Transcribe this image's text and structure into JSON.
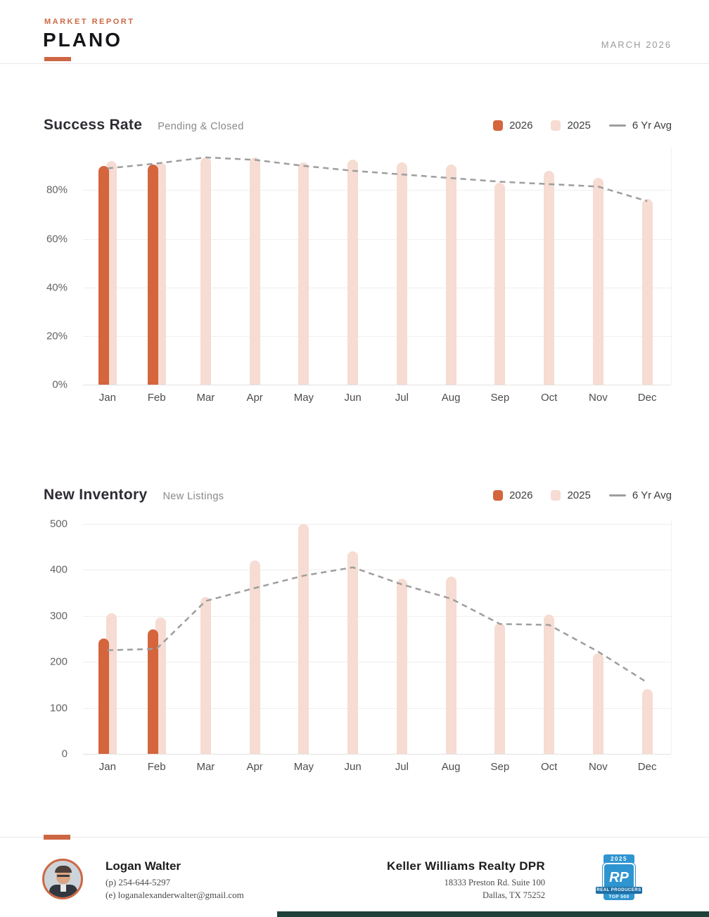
{
  "header": {
    "eyebrow": "MARKET REPORT",
    "city": "PLANO",
    "date": "MARCH 2026"
  },
  "legend": {
    "s2026": "2026",
    "s2025": "2025",
    "avg": "6 Yr Avg"
  },
  "chart_data": [
    {
      "type": "bar",
      "title": "Success Rate",
      "subtitle": "Pending & Closed",
      "categories": [
        "Jan",
        "Feb",
        "Mar",
        "Apr",
        "May",
        "Jun",
        "Jul",
        "Aug",
        "Sep",
        "Oct",
        "Nov",
        "Dec"
      ],
      "series": [
        {
          "name": "2026",
          "type": "bar",
          "values": [
            90,
            90.5,
            null,
            null,
            null,
            null,
            null,
            null,
            null,
            null,
            null,
            null
          ]
        },
        {
          "name": "2025",
          "type": "bar",
          "values": [
            92,
            91.5,
            93.5,
            93.5,
            91.5,
            92.5,
            91.5,
            90.5,
            83,
            88,
            85,
            76.5
          ]
        },
        {
          "name": "6 Yr Avg",
          "type": "line",
          "values": [
            89,
            91,
            93.5,
            92.5,
            90,
            88,
            86.5,
            85,
            83.5,
            82.5,
            81.5,
            75.5
          ]
        }
      ],
      "xlabel": "",
      "ylabel": "",
      "ylim": [
        0,
        100
      ],
      "yticks": [
        0,
        20,
        40,
        60,
        80
      ],
      "ytick_suffix": "%",
      "grid": true,
      "legend_position": "top-right",
      "render_ymax": 97.5
    },
    {
      "type": "bar",
      "title": "New Inventory",
      "subtitle": "New Listings",
      "categories": [
        "Jan",
        "Feb",
        "Mar",
        "Apr",
        "May",
        "Jun",
        "Jul",
        "Aug",
        "Sep",
        "Oct",
        "Nov",
        "Dec"
      ],
      "series": [
        {
          "name": "2026",
          "type": "bar",
          "values": [
            250,
            270,
            null,
            null,
            null,
            null,
            null,
            null,
            null,
            null,
            null,
            null
          ]
        },
        {
          "name": "2025",
          "type": "bar",
          "values": [
            305,
            297,
            340,
            420,
            500,
            440,
            380,
            385,
            284,
            303,
            218,
            140
          ]
        },
        {
          "name": "6 Yr Avg",
          "type": "line",
          "values": [
            225,
            228,
            332,
            360,
            387,
            405,
            368,
            337,
            282,
            280,
            222,
            155
          ]
        }
      ],
      "xlabel": "",
      "ylabel": "",
      "ylim": [
        0,
        500
      ],
      "yticks": [
        0,
        100,
        200,
        300,
        400,
        500
      ],
      "ytick_suffix": "",
      "grid": true,
      "legend_position": "top-right",
      "render_ymax": 507
    }
  ],
  "footer": {
    "agent": {
      "name": "Logan Walter",
      "phone": "(p) 254-644-5297",
      "email": "(e) loganalexanderwalter@gmail.com"
    },
    "office": {
      "name": "Keller Williams Realty DPR",
      "address1": "18333 Preston Rd. Suite 100",
      "address2": "Dallas, TX 75252"
    },
    "badge": {
      "year": "2025",
      "initials": "RP",
      "ribbon": "REAL PRODUCERS",
      "bottom": "TOP 500"
    }
  },
  "colors": {
    "accent": "#cd6743",
    "bar2026": "#d4653c",
    "bar2025": "#f6dcd2",
    "avgline": "#9e9e9e",
    "grid": "#efefef",
    "baseline": "#e2e2e2",
    "ink": "#2f2b33",
    "muted": "#8b8786",
    "badge_blue": "#2f95d0",
    "badge_dark": "#1d6fa6",
    "strip": "#1d4038"
  }
}
